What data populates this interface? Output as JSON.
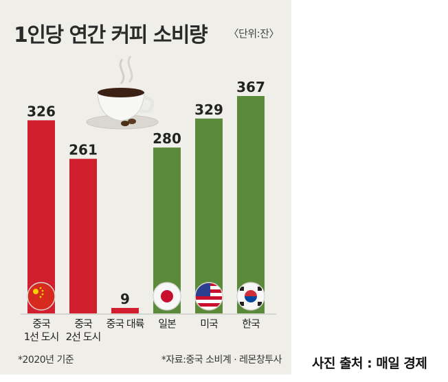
{
  "header": {
    "title": "1인당 연간 커피 소비량",
    "unit": "〈단위:잔〉"
  },
  "notes": {
    "left": "*2020년 기준",
    "right": "*자료:중국 소비계 · 레몬창투사"
  },
  "credit": "사진 출처 : 매일 경제",
  "colors": {
    "china": "#d11f2f",
    "others": "#5b8a3a",
    "background": "#efeee9"
  },
  "chart_data": {
    "type": "bar",
    "title": "1인당 연간 커피 소비량",
    "unit": "잔",
    "categories": [
      "중국\n1선 도시",
      "중국\n2선 도시",
      "중국 대륙",
      "일본",
      "미국",
      "한국"
    ],
    "values": [
      326,
      261,
      9,
      280,
      329,
      367
    ],
    "flags": [
      "china-flag-icon",
      "",
      "",
      "japan-flag-icon",
      "usa-flag-icon",
      "korea-flag-icon"
    ],
    "ylim": [
      0,
      367
    ]
  }
}
